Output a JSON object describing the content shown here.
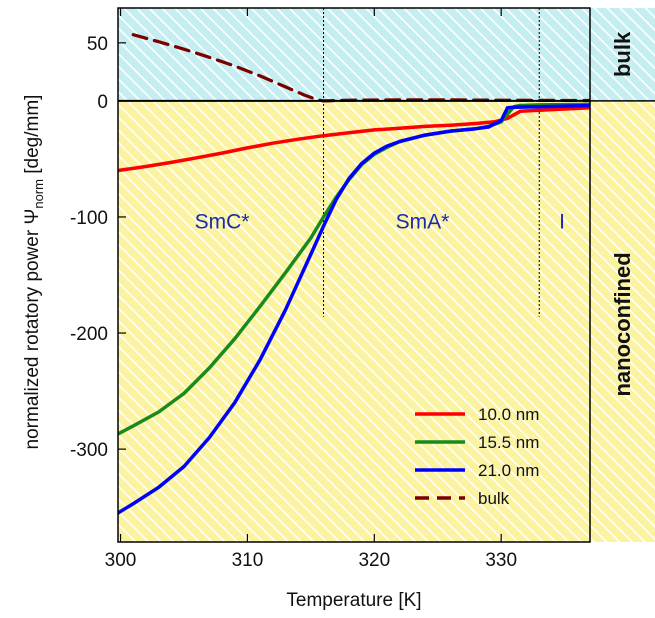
{
  "chart_data": {
    "type": "line",
    "xlabel": "Temperature [K]",
    "ylabel": "normalized rotatory power Ψ",
    "ylabel_subscript": "norm",
    "ylabel_unit": " [deg/mm]",
    "xlim": [
      299.8,
      337
    ],
    "ylim": [
      -380,
      80
    ],
    "xticks": [
      300,
      310,
      320,
      330
    ],
    "yticks": [
      50,
      0,
      -100,
      -200,
      -300
    ],
    "grid": false,
    "legend_position": "lower-right",
    "phase_boundaries": [
      316,
      333
    ],
    "phase_labels": [
      {
        "text": "SmC*",
        "x": 308,
        "y": -110
      },
      {
        "text": "SmA*",
        "x": 323.8,
        "y": -110
      },
      {
        "text": "I",
        "x": 334.8,
        "y": -110
      }
    ],
    "region_labels": {
      "bulk": "bulk",
      "nanoconfined": "nanoconfined"
    },
    "colors": {
      "bulk_band": "#a8e6ec",
      "nanoconfined_band": "#fbf28e",
      "phase_text": "#1a2bb0"
    },
    "series": [
      {
        "name": "10.0 nm",
        "color": "#ff0000",
        "dashed": false,
        "x": [
          299.8,
          302,
          304,
          306,
          308,
          310,
          312,
          314,
          316,
          318,
          320,
          322,
          324,
          326,
          328,
          329.5,
          330.5,
          331,
          331.5,
          333,
          335,
          337
        ],
        "y": [
          -60,
          -56.5,
          -53,
          -49,
          -45,
          -40.5,
          -36.5,
          -33,
          -30,
          -27.5,
          -25,
          -23.5,
          -22,
          -21,
          -19.5,
          -18,
          -15,
          -12,
          -9,
          -8,
          -7,
          -6
        ]
      },
      {
        "name": "15.5 nm",
        "color": "#1a8a1a",
        "dashed": false,
        "x": [
          299.8,
          301,
          303,
          305,
          307,
          309,
          311,
          313,
          315,
          316,
          317,
          318,
          319,
          320,
          321,
          322,
          324,
          326,
          328,
          329,
          330,
          330.6,
          331,
          331.5,
          333,
          335,
          337
        ],
        "y": [
          -287,
          -280,
          -268,
          -252,
          -230,
          -205,
          -177,
          -148,
          -118,
          -100,
          -83,
          -68,
          -55,
          -46,
          -40,
          -35,
          -29.5,
          -26,
          -24,
          -22,
          -18,
          -10,
          -5,
          -4,
          -3.5,
          -3.2,
          -3
        ]
      },
      {
        "name": "21.0 nm",
        "color": "#0000ff",
        "dashed": false,
        "x": [
          299.8,
          301,
          303,
          305,
          307,
          309,
          311,
          313,
          315,
          316,
          317,
          318,
          319,
          320,
          321,
          322,
          324,
          326,
          328,
          329,
          330,
          330.5,
          331,
          333,
          335,
          337
        ],
        "y": [
          -355,
          -347,
          -333,
          -315,
          -290,
          -260,
          -223,
          -180,
          -132,
          -108,
          -85,
          -67,
          -54,
          -45,
          -39,
          -35,
          -29.5,
          -26,
          -24,
          -22.5,
          -17,
          -6,
          -5.5,
          -5,
          -4.5,
          -4
        ]
      },
      {
        "name": "bulk",
        "color": "#7a0000",
        "dashed": true,
        "x": [
          301,
          303,
          305,
          307,
          309,
          311,
          313,
          314.5,
          315.5,
          316,
          318,
          322,
          326,
          330,
          334,
          337
        ],
        "y": [
          57,
          51,
          44.5,
          37.5,
          30,
          21.5,
          12,
          5,
          1,
          0,
          0.6,
          0.8,
          0.8,
          0.6,
          0.4,
          0.3
        ]
      }
    ]
  }
}
